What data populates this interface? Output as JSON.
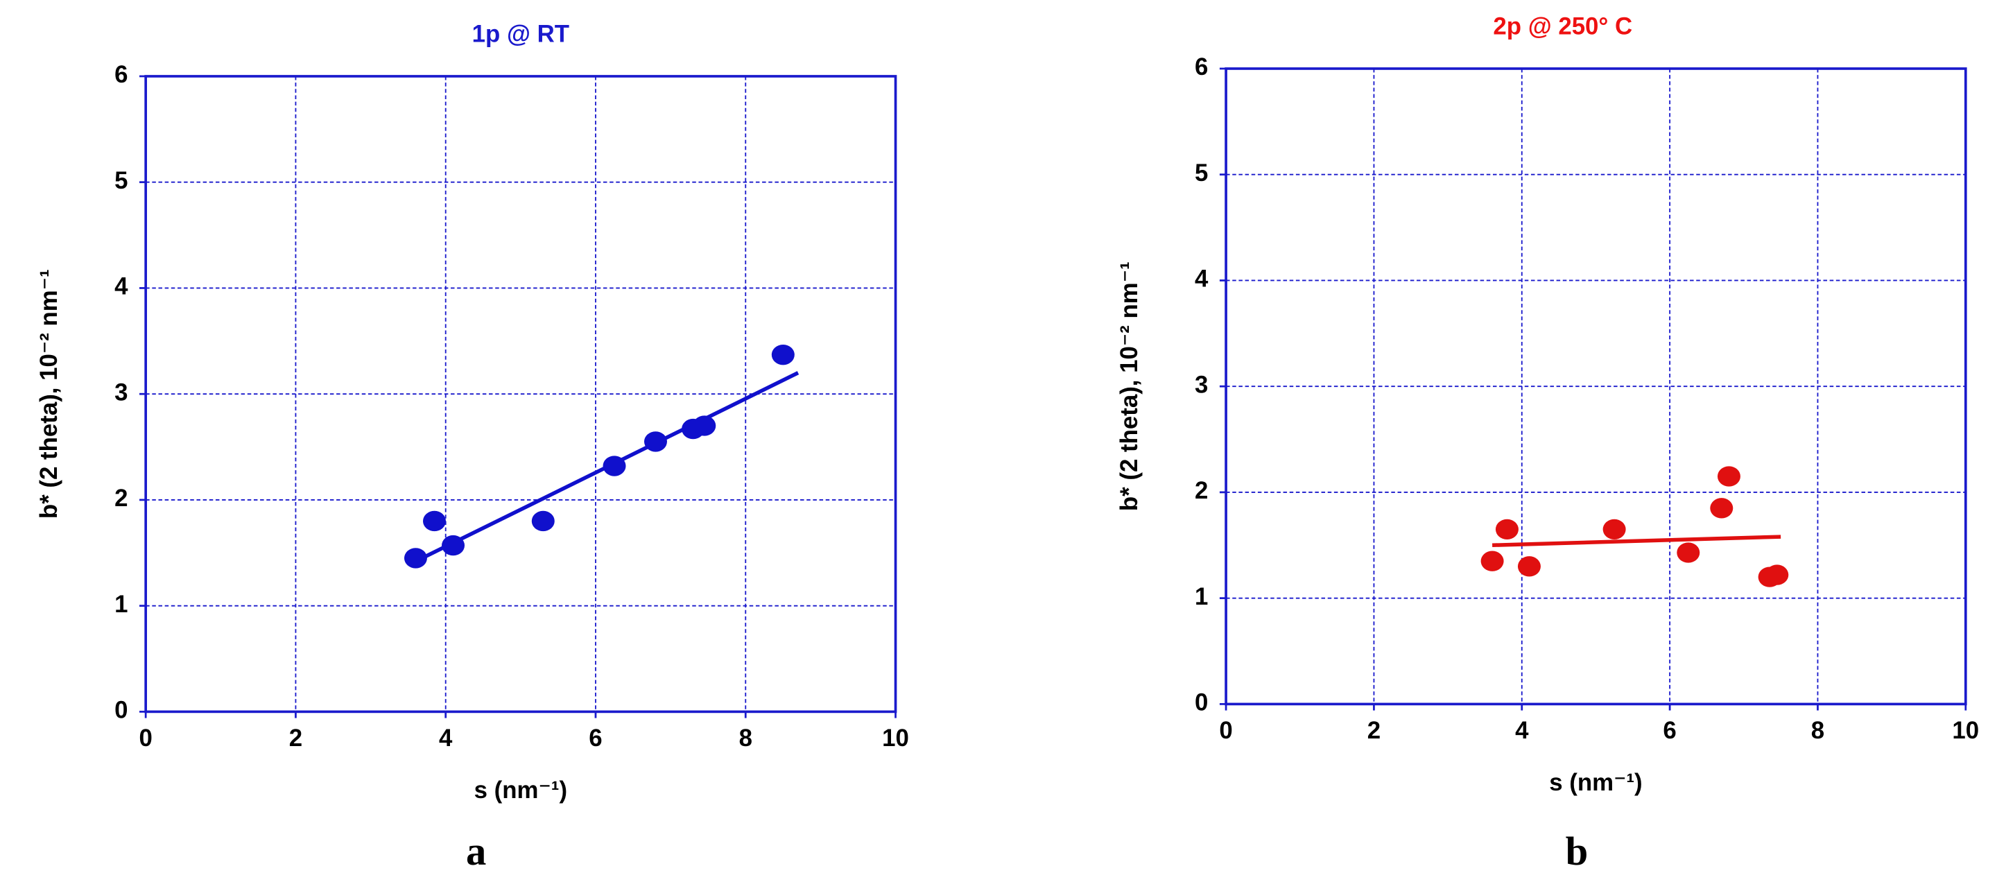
{
  "chart_data": [
    {
      "type": "scatter",
      "title": "1p @ RT",
      "x_label": "s (nm⁻¹)",
      "y_label": "b* (2 theta), 10⁻² nm⁻¹",
      "panel_label": "a",
      "color": "#1010cc",
      "title_color": "#1a1acc",
      "x": [
        3.6,
        3.85,
        4.1,
        5.3,
        6.25,
        6.8,
        7.3,
        7.45,
        8.5
      ],
      "values": [
        1.45,
        1.8,
        1.57,
        1.8,
        2.32,
        2.55,
        2.67,
        2.7,
        3.37
      ],
      "fit_line": {
        "x": [
          3.6,
          8.7
        ],
        "y": [
          1.42,
          3.2
        ]
      },
      "xlim": [
        0,
        10
      ],
      "xticks": [
        0,
        2,
        4,
        6,
        8,
        10
      ],
      "ylim": [
        0,
        6
      ],
      "yticks": [
        0,
        1,
        2,
        3,
        4,
        5,
        6
      ],
      "grid": true
    },
    {
      "type": "scatter",
      "title": "2p @ 250° C",
      "x_label": "s (nm⁻¹)",
      "y_label": "b* (2 theta), 10⁻² nm⁻¹",
      "panel_label": "b",
      "color": "#e01010",
      "title_color": "#ee1111",
      "x": [
        3.6,
        3.8,
        4.1,
        5.25,
        6.25,
        6.7,
        6.8,
        7.35,
        7.45
      ],
      "values": [
        1.35,
        1.65,
        1.3,
        1.65,
        1.43,
        1.85,
        2.15,
        1.2,
        1.22
      ],
      "fit_line": {
        "x": [
          3.6,
          7.5
        ],
        "y": [
          1.5,
          1.58
        ]
      },
      "xlim": [
        0,
        10
      ],
      "xticks": [
        0,
        2,
        4,
        6,
        8,
        10
      ],
      "ylim": [
        0,
        6
      ],
      "yticks": [
        0,
        1,
        2,
        3,
        4,
        5,
        6
      ],
      "grid": true
    }
  ]
}
